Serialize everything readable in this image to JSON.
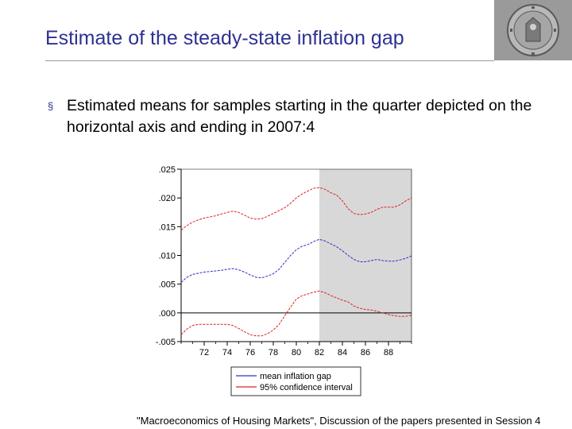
{
  "slide": {
    "title": "Estimate of the steady-state inflation gap",
    "bullet_marker": "§",
    "bullet_text": "Estimated means for samples starting in the quarter depicted on the horizontal axis and ending in 2007:4",
    "footer": "\"Macroeconomics of Housing Markets\", Discussion of the papers presented in Session 4"
  },
  "colors": {
    "title": "#2e3192",
    "mean_line": "#3030c8",
    "ci_line": "#e02020",
    "shade": "#d8d8d8",
    "logo_bg": "#9a9a9a"
  },
  "chart_data": {
    "type": "line",
    "title": "",
    "xlabel": "",
    "ylabel": "",
    "xlim": [
      1970,
      1990
    ],
    "ylim": [
      -0.005,
      0.025
    ],
    "y_ticks": [
      -0.005,
      0.0,
      0.005,
      0.01,
      0.015,
      0.02,
      0.025
    ],
    "y_tick_labels": [
      "-.005",
      ".000",
      ".005",
      ".010",
      ".015",
      ".020",
      ".025"
    ],
    "x_ticks": [
      1972,
      1974,
      1976,
      1978,
      1980,
      1982,
      1984,
      1986,
      1988
    ],
    "x_tick_labels": [
      "72",
      "74",
      "76",
      "78",
      "80",
      "82",
      "84",
      "86",
      "88"
    ],
    "shaded_region": [
      1982,
      1990
    ],
    "zero_line": 0.0,
    "legend_position": "bottom",
    "series": [
      {
        "name": "mean inflation gap",
        "style": "dashed",
        "color": "#3030c8",
        "x": [
          1970,
          1970.5,
          1971,
          1971.5,
          1972,
          1972.5,
          1973,
          1973.5,
          1974,
          1974.5,
          1975,
          1975.5,
          1976,
          1976.5,
          1977,
          1977.5,
          1978,
          1978.5,
          1979,
          1979.5,
          1980,
          1980.5,
          1981,
          1981.5,
          1982,
          1982.5,
          1983,
          1983.5,
          1984,
          1984.5,
          1985,
          1985.5,
          1986,
          1986.5,
          1987,
          1987.5,
          1988,
          1988.5,
          1989,
          1989.5,
          1990
        ],
        "y": [
          0.0053,
          0.0062,
          0.0067,
          0.0069,
          0.0071,
          0.0072,
          0.0073,
          0.0074,
          0.0076,
          0.0077,
          0.0075,
          0.0071,
          0.0066,
          0.0062,
          0.0061,
          0.0064,
          0.0068,
          0.0076,
          0.0088,
          0.01,
          0.011,
          0.0116,
          0.0119,
          0.0124,
          0.0128,
          0.0125,
          0.012,
          0.0115,
          0.0108,
          0.01,
          0.0093,
          0.0089,
          0.0089,
          0.0091,
          0.0093,
          0.0091,
          0.009,
          0.009,
          0.0092,
          0.0095,
          0.0099
        ]
      },
      {
        "name": "95% confidence interval",
        "style": "dashed",
        "color": "#e02020",
        "x": [
          1970,
          1970.5,
          1971,
          1971.5,
          1972,
          1972.5,
          1973,
          1973.5,
          1974,
          1974.5,
          1975,
          1975.5,
          1976,
          1976.5,
          1977,
          1977.5,
          1978,
          1978.5,
          1979,
          1979.5,
          1980,
          1980.5,
          1981,
          1981.5,
          1982,
          1982.5,
          1983,
          1983.5,
          1984,
          1984.5,
          1985,
          1985.5,
          1986,
          1986.5,
          1987,
          1987.5,
          1988,
          1988.5,
          1989,
          1989.5,
          1990
        ],
        "y": [
          0.0144,
          0.0152,
          0.0158,
          0.0162,
          0.0165,
          0.0167,
          0.0169,
          0.0172,
          0.0175,
          0.0177,
          0.0175,
          0.017,
          0.0165,
          0.0163,
          0.0164,
          0.0168,
          0.0173,
          0.0178,
          0.0183,
          0.0191,
          0.02,
          0.0207,
          0.0212,
          0.0217,
          0.0218,
          0.0215,
          0.0209,
          0.0205,
          0.0195,
          0.0181,
          0.0173,
          0.0171,
          0.0172,
          0.0175,
          0.018,
          0.0184,
          0.0184,
          0.0184,
          0.0188,
          0.0195,
          0.02
        ]
      },
      {
        "name": "95% confidence interval (lower)",
        "style": "dashed",
        "color": "#e02020",
        "x": [
          1970,
          1970.5,
          1971,
          1971.5,
          1972,
          1972.5,
          1973,
          1973.5,
          1974,
          1974.5,
          1975,
          1975.5,
          1976,
          1976.5,
          1977,
          1977.5,
          1978,
          1978.5,
          1979,
          1979.5,
          1980,
          1980.5,
          1981,
          1981.5,
          1982,
          1982.5,
          1983,
          1983.5,
          1984,
          1984.5,
          1985,
          1985.5,
          1986,
          1986.5,
          1987,
          1987.5,
          1988,
          1988.5,
          1989,
          1989.5,
          1990
        ],
        "y": [
          -0.0038,
          -0.0028,
          -0.0022,
          -0.002,
          -0.002,
          -0.002,
          -0.002,
          -0.002,
          -0.002,
          -0.0022,
          -0.0027,
          -0.0033,
          -0.0038,
          -0.004,
          -0.004,
          -0.0036,
          -0.003,
          -0.002,
          -0.0005,
          0.001,
          0.0024,
          0.003,
          0.0033,
          0.0036,
          0.0038,
          0.0035,
          0.003,
          0.0026,
          0.0022,
          0.0019,
          0.0012,
          0.0008,
          0.0006,
          0.0005,
          0.0003,
          0.0,
          -0.0003,
          -0.0005,
          -0.0006,
          -0.0006,
          -0.0004
        ]
      }
    ],
    "legend": [
      {
        "label": "mean inflation gap",
        "color": "#3030c8"
      },
      {
        "label": "95% confidence interval",
        "color": "#e02020"
      }
    ]
  }
}
